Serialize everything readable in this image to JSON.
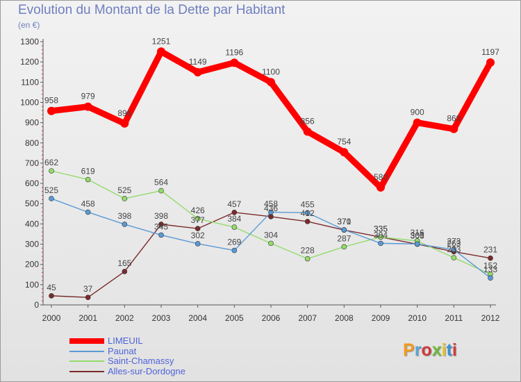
{
  "header": {
    "title": "Evolution du Montant de la Dette par Habitant",
    "subtitle": "(en €)"
  },
  "logo": {
    "text": "Proxiti",
    "colors": [
      "#f39a1e",
      "#5aa3d6",
      "#d23a3a",
      "#6fb83f",
      "#e8c31a",
      "#3b8fd0",
      "#d23a3a"
    ]
  },
  "chart_data": {
    "type": "line",
    "title": "Evolution du Montant de la Dette par Habitant",
    "ylabel": "(en €)",
    "x": [
      "2000",
      "2001",
      "2002",
      "2003",
      "2004",
      "2005",
      "2006",
      "2007",
      "2008",
      "2009",
      "2010",
      "2011",
      "2012"
    ],
    "yticks": [
      0,
      100,
      200,
      300,
      400,
      500,
      600,
      700,
      800,
      900,
      1000,
      1100,
      1200,
      1300
    ],
    "ylim": [
      0,
      1300
    ],
    "grid": false,
    "legend_position": "bottom-left",
    "series": [
      {
        "name": "LIMEUIL",
        "color": "#ff0000",
        "values": [
          958,
          979,
          896,
          1251,
          1149,
          1196,
          1100,
          856,
          754,
          580,
          900,
          869,
          1197
        ],
        "labels": [
          "958",
          "979",
          "896",
          "1251",
          "1149",
          "1196",
          "1100",
          "856",
          "754",
          "580",
          "900",
          "869",
          "1197"
        ]
      },
      {
        "name": "Paunat",
        "color": "#5b9ad5",
        "values": [
          525,
          458,
          398,
          345,
          302,
          269,
          458,
          455,
          371,
          304,
          301,
          273,
          133
        ],
        "labels": [
          "525",
          "458",
          "398",
          "345",
          "302",
          "269",
          "458",
          "455",
          "371",
          "304",
          "301",
          "273",
          "133"
        ]
      },
      {
        "name": "Saint-Chamassy",
        "color": "#94dc6c",
        "values": [
          662,
          619,
          525,
          564,
          426,
          384,
          304,
          228,
          287,
          335,
          316,
          233,
          152
        ],
        "labels": [
          "662",
          "619",
          "525",
          "564",
          "426",
          "384",
          "304",
          "228",
          "287",
          "335",
          "316",
          "233",
          "152"
        ]
      },
      {
        "name": "Alles-sur-Dordogne",
        "color": "#7a2a2a",
        "values": [
          45,
          37,
          165,
          398,
          377,
          457,
          436,
          412,
          370,
          335,
          300,
          263,
          231
        ],
        "labels": [
          "45",
          "37",
          "165",
          "398",
          "377",
          "457",
          "436",
          "412",
          "370",
          "335",
          "300",
          "263",
          "231"
        ]
      }
    ]
  }
}
